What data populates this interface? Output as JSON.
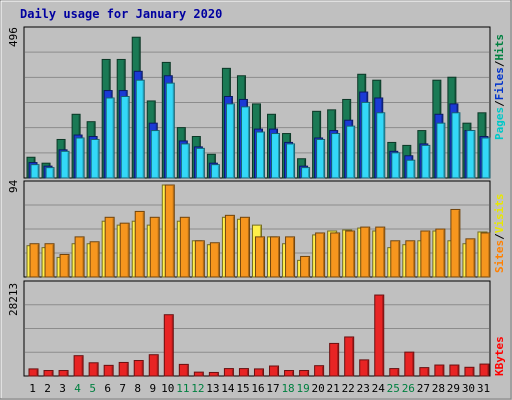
{
  "chart_data": [
    {
      "type": "bar",
      "title": "Daily usage for January 2020",
      "categories": [
        "1",
        "2",
        "3",
        "4",
        "5",
        "6",
        "7",
        "8",
        "9",
        "10",
        "11",
        "12",
        "13",
        "14",
        "15",
        "16",
        "17",
        "18",
        "19",
        "20",
        "21",
        "22",
        "23",
        "24",
        "25",
        "26",
        "27",
        "28",
        "29",
        "30",
        "31"
      ],
      "weekend_categories": [
        "4",
        "5",
        "11",
        "12",
        "18",
        "19",
        "25",
        "26"
      ],
      "ytick": "496",
      "ylim": [
        0,
        496
      ],
      "legend_placement": "right",
      "legend": [
        {
          "label": "Pages",
          "color": "#00c8c8"
        },
        {
          "label": "Files",
          "color": "#0033cc"
        },
        {
          "label": "Hits",
          "color": "#008040"
        }
      ],
      "series": [
        {
          "name": "Hits",
          "color": "#1a7a55",
          "values": [
            70,
            50,
            130,
            215,
            190,
            400,
            400,
            475,
            260,
            390,
            170,
            140,
            80,
            370,
            345,
            250,
            215,
            150,
            65,
            225,
            230,
            265,
            350,
            330,
            120,
            110,
            160,
            330,
            340,
            185,
            220
          ]
        },
        {
          "name": "Files",
          "color": "#1a3ad6",
          "values": [
            52,
            40,
            95,
            145,
            140,
            295,
            295,
            360,
            185,
            345,
            125,
            105,
            50,
            275,
            265,
            165,
            165,
            120,
            40,
            135,
            160,
            195,
            290,
            270,
            90,
            75,
            115,
            215,
            250,
            160,
            140
          ]
        },
        {
          "name": "Pages",
          "color": "#33d8f8",
          "values": [
            45,
            35,
            90,
            135,
            130,
            270,
            275,
            330,
            160,
            320,
            115,
            100,
            45,
            250,
            240,
            155,
            150,
            115,
            35,
            130,
            150,
            175,
            255,
            220,
            85,
            60,
            110,
            185,
            220,
            160,
            135
          ]
        }
      ]
    },
    {
      "type": "bar",
      "categories": [
        "1",
        "2",
        "3",
        "4",
        "5",
        "6",
        "7",
        "8",
        "9",
        "10",
        "11",
        "12",
        "13",
        "14",
        "15",
        "16",
        "17",
        "18",
        "19",
        "20",
        "21",
        "22",
        "23",
        "24",
        "25",
        "26",
        "27",
        "28",
        "29",
        "30",
        "31"
      ],
      "ytick": "94",
      "ylim": [
        0,
        94
      ],
      "legend_placement": "right",
      "legend": [
        {
          "label": "Sites",
          "color": "#ff8000"
        },
        {
          "label": "Visits",
          "color": "#ffff00"
        }
      ],
      "series": [
        {
          "name": "Visits",
          "color": "#fff04a",
          "values": [
            32,
            30,
            20,
            34,
            34,
            57,
            53,
            57,
            53,
            94,
            57,
            37,
            33,
            61,
            59,
            53,
            41,
            34,
            17,
            43,
            47,
            48,
            50,
            47,
            30,
            33,
            37,
            47,
            37,
            34,
            46
          ]
        },
        {
          "name": "Sites",
          "color": "#f7961e",
          "values": [
            34,
            34,
            23,
            41,
            36,
            61,
            55,
            67,
            61,
            94,
            61,
            37,
            35,
            63,
            61,
            41,
            41,
            41,
            21,
            45,
            45,
            47,
            51,
            51,
            37,
            37,
            47,
            49,
            69,
            39,
            45
          ]
        }
      ]
    },
    {
      "type": "bar",
      "categories": [
        "1",
        "2",
        "3",
        "4",
        "5",
        "6",
        "7",
        "8",
        "9",
        "10",
        "11",
        "12",
        "13",
        "14",
        "15",
        "16",
        "17",
        "18",
        "19",
        "20",
        "21",
        "22",
        "23",
        "24",
        "25",
        "26",
        "27",
        "28",
        "29",
        "30",
        "31"
      ],
      "ytick": "28213",
      "ylim": [
        0,
        28213
      ],
      "legend_placement": "right",
      "legend": [
        {
          "label": "KBytes",
          "color": "#ff0000"
        }
      ],
      "series": [
        {
          "name": "KBytes",
          "color": "#e82424",
          "values": [
            2200,
            1700,
            1700,
            6300,
            4100,
            3300,
            4200,
            4800,
            6600,
            19000,
            3600,
            1200,
            1100,
            2300,
            2300,
            2200,
            3100,
            1700,
            1700,
            3200,
            10100,
            12100,
            5000,
            25100,
            2300,
            7400,
            2600,
            3400,
            3400,
            2700,
            3700
          ]
        }
      ]
    }
  ]
}
